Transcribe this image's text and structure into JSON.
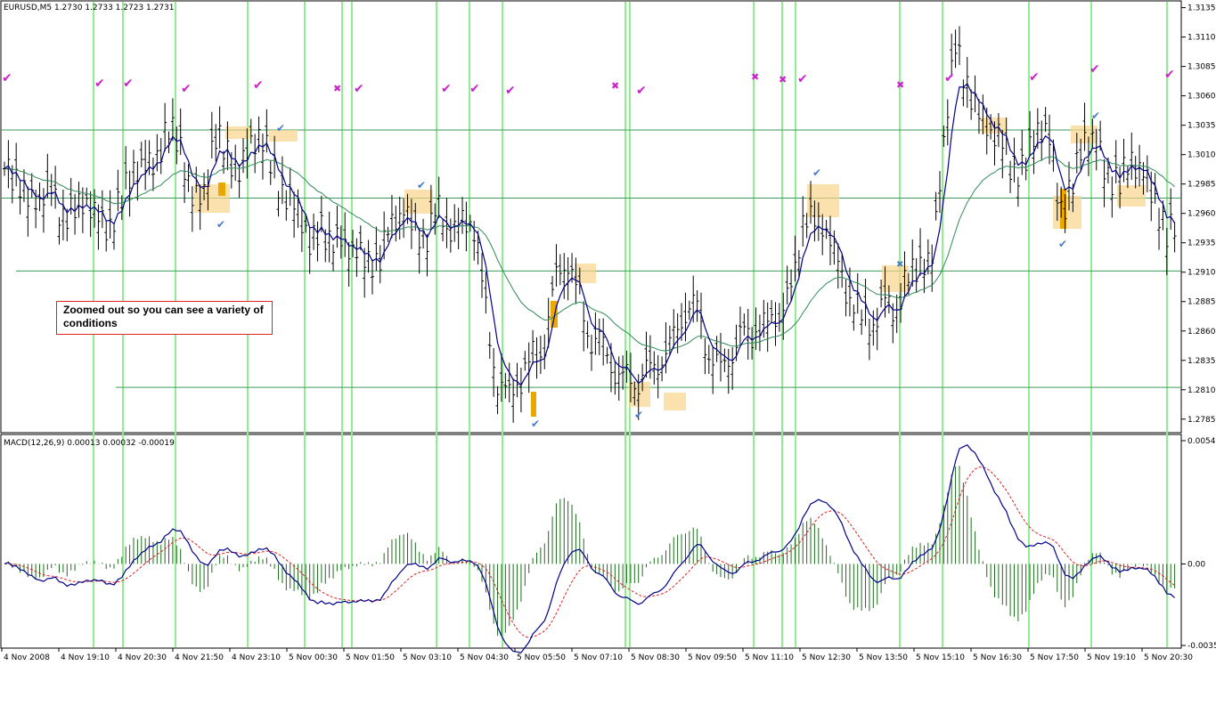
{
  "chart_data": [
    {
      "type": "candlestick",
      "header": "EURUSD,M5  1.2730 1.2733 1.2723 1.2731",
      "ylim": [
        1.2775,
        1.314
      ],
      "y_ticks": [
        "1.3135",
        "1.3110",
        "1.3085",
        "1.3060",
        "1.3035",
        "1.3010",
        "1.2985",
        "1.2960",
        "1.2935",
        "1.2910",
        "1.2885",
        "1.2860",
        "1.2835",
        "1.2810",
        "1.2785"
      ],
      "x_ticks": [
        "4 Nov 2008",
        "4 Nov 19:10",
        "4 Nov 20:30",
        "4 Nov 21:50",
        "4 Nov 23:10",
        "5 Nov 00:30",
        "5 Nov 01:50",
        "5 Nov 03:10",
        "5 Nov 04:30",
        "5 Nov 05:50",
        "5 Nov 07:10",
        "5 Nov 08:30",
        "5 Nov 09:50",
        "5 Nov 11:10",
        "5 Nov 12:30",
        "5 Nov 13:50",
        "5 Nov 15:10",
        "5 Nov 16:30",
        "5 Nov 17:50",
        "5 Nov 19:10",
        "5 Nov 20:30"
      ],
      "annotation": "Zoomed out so you can see a variety of conditions",
      "horizontal_levels": [
        1.3031,
        1.2973,
        1.2911,
        1.2812
      ],
      "close_series": [
        1.299,
        1.2998,
        1.2975,
        1.2968,
        1.2972,
        1.2966,
        1.2965,
        1.2963,
        1.2953,
        1.2958,
        1.2972,
        1.299,
        1.3002,
        1.3015,
        1.3028,
        1.301,
        1.2978,
        1.2983,
        1.3018,
        1.3008,
        1.3003,
        1.302,
        1.3015,
        1.2995,
        1.2982,
        1.2958,
        1.2928,
        1.295,
        1.2945,
        1.2922,
        1.2928,
        1.2922,
        1.2928,
        1.294,
        1.2968,
        1.2948,
        1.294,
        1.2955,
        1.295,
        1.2958,
        1.2945,
        1.287,
        1.2823,
        1.2808,
        1.2812,
        1.2836,
        1.2858,
        1.2905,
        1.2912,
        1.2888,
        1.286,
        1.2842,
        1.2818,
        1.2826,
        1.2822,
        1.2818,
        1.2835,
        1.2862,
        1.2878,
        1.287,
        1.2842,
        1.2835,
        1.2838,
        1.285,
        1.2868,
        1.287,
        1.2868,
        1.2888,
        1.2968,
        1.295,
        1.2942,
        1.2915,
        1.2898,
        1.2868,
        1.2858,
        1.289,
        1.2885,
        1.2898,
        1.2915,
        1.2925,
        1.3028,
        1.3092,
        1.307,
        1.3052,
        1.3028,
        1.3012,
        1.2998,
        1.301,
        1.3028,
        1.3018,
        1.2968,
        1.299,
        1.3015,
        1.302,
        1.2998,
        1.2988,
        1.2995,
        1.3,
        1.2975,
        1.294
      ],
      "fast_ma_color": "#00008b",
      "slow_ma_color": "#2e8b57",
      "vertical_line_color": "#90ee90",
      "zone_color": "#f9d48b",
      "buy_mark_color": "#4a7ec2",
      "signal_mark_color": "#cc22cc"
    },
    {
      "type": "macd",
      "header": "MACD(12,26,9) 0.00013 0.00032 -0.00019",
      "ylim": [
        -0.0035,
        0.0054
      ],
      "y_ticks": [
        "0.0054",
        "0.00",
        "-0.0035"
      ],
      "macd_line_color": "#00008b",
      "signal_line_color": "#dd2222",
      "histogram_color": "#1e6b1e"
    }
  ]
}
